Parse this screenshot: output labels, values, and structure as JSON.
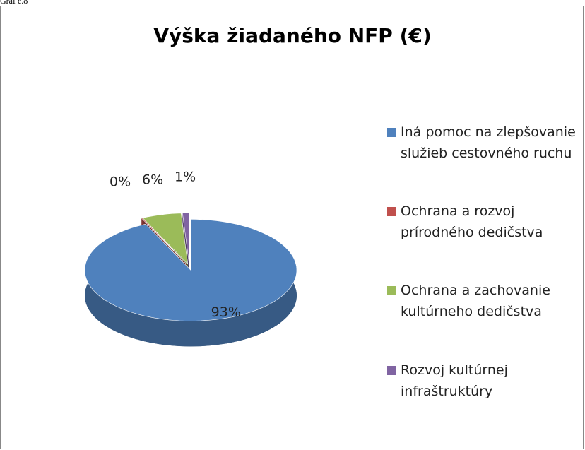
{
  "caption": "Graf č.8",
  "chart_data": {
    "type": "pie3d",
    "title": "Výška žiadaného NFP (€)",
    "categories": [
      "Iná pomoc na zlepšovanie služieb cestovného ruchu",
      "Ochrana a rozvoj prírodného dedičstva",
      "Ochrana a zachovanie kultúrneho dedičstva",
      "Rozvoj kultúrnej infraštruktúry"
    ],
    "values": [
      93,
      0,
      6,
      1
    ],
    "value_labels": [
      "93%",
      "0%",
      "6%",
      "1%"
    ],
    "colors": [
      "#4f81bd",
      "#c0504d",
      "#9bbb59",
      "#8064a2"
    ],
    "legend": "right"
  }
}
